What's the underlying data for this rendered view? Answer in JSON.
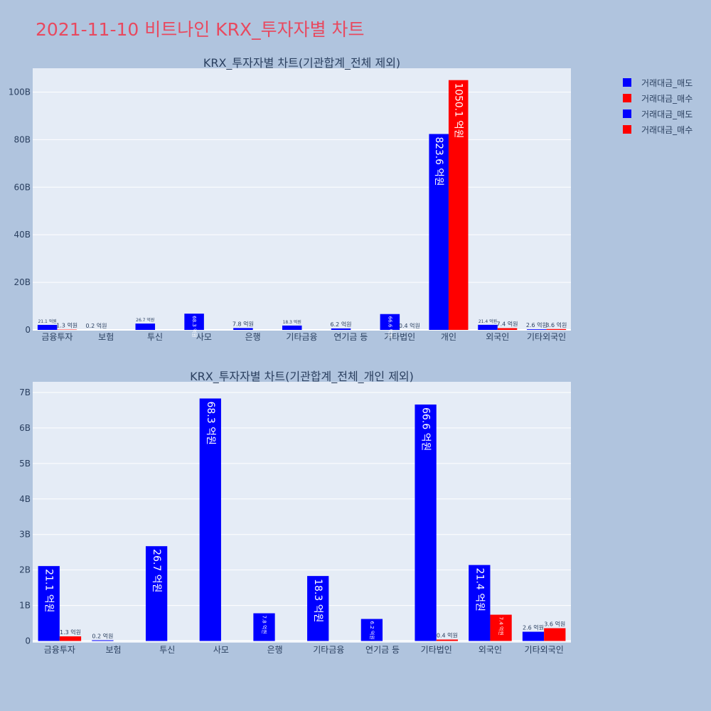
{
  "page": {
    "title": "2021-11-10 비트나인 KRX_투자자별 차트",
    "background": "#b0c4de",
    "title_color": "#e8495f",
    "plot_background": "#e5ecf6"
  },
  "legend": {
    "items": [
      {
        "label": "거래대금_매도",
        "color": "#0000ff"
      },
      {
        "label": "거래대금_매수",
        "color": "#ff0000"
      },
      {
        "label": "거래대금_매도",
        "color": "#0000ff"
      },
      {
        "label": "거래대금_매수",
        "color": "#ff0000"
      }
    ]
  },
  "chart_data": [
    {
      "type": "bar",
      "title": "KRX_투자자별 차트(기관합계_전체 제외)",
      "categories": [
        "금융투자",
        "보험",
        "투신",
        "사모",
        "은행",
        "기타금융",
        "연기금 등",
        "기타법인",
        "개인",
        "외국인",
        "기타외국인"
      ],
      "yticks": [
        0,
        20,
        40,
        60,
        80,
        100
      ],
      "ytick_labels": [
        "0",
        "20B",
        "40B",
        "60B",
        "80B",
        "100B"
      ],
      "ylim": [
        0,
        110
      ],
      "unit": "B",
      "grid": true,
      "series": [
        {
          "name": "거래대금_매도",
          "color": "#0000ff",
          "values": [
            2.11,
            0.02,
            2.67,
            6.83,
            0.78,
            1.83,
            0.62,
            6.66,
            82.36,
            2.14,
            0.26
          ],
          "labels": [
            "21.1 억원",
            "0.2 억원",
            "26.7 억원",
            "68.3 억원",
            "7.8 억원",
            "18.3 억원",
            "6.2 억원",
            "66.6 억원",
            "823.6 억원",
            "21.4 억원",
            "2.6 억원"
          ]
        },
        {
          "name": "거래대금_매수",
          "color": "#ff0000",
          "values": [
            0.13,
            0,
            0,
            0,
            0,
            0,
            0,
            0.04,
            105.01,
            0.74,
            0.36
          ],
          "labels": [
            "1.3 억원",
            "",
            "",
            "",
            "",
            "",
            "",
            "0.4 억원",
            "1050.1 억원",
            "7.4 억원",
            "3.6 억원"
          ]
        }
      ]
    },
    {
      "type": "bar",
      "title": "KRX_투자자별 차트(기관합계_전체_개인 제외)",
      "categories": [
        "금융투자",
        "보험",
        "투신",
        "사모",
        "은행",
        "기타금융",
        "연기금 등",
        "기타법인",
        "외국인",
        "기타외국인"
      ],
      "yticks": [
        0,
        1,
        2,
        3,
        4,
        5,
        6,
        7
      ],
      "ytick_labels": [
        "0",
        "1B",
        "2B",
        "3B",
        "4B",
        "5B",
        "6B",
        "7B"
      ],
      "ylim": [
        -0.05,
        7.3
      ],
      "unit": "B",
      "grid": true,
      "series": [
        {
          "name": "거래대금_매도",
          "color": "#0000ff",
          "values": [
            2.11,
            0.02,
            2.67,
            6.83,
            0.78,
            1.83,
            0.62,
            6.66,
            2.14,
            0.26
          ],
          "labels": [
            "21.1 억원",
            "0.2 억원",
            "26.7 억원",
            "68.3 억원",
            "7.8 억원",
            "18.3 억원",
            "6.2 억원",
            "66.6 억원",
            "21.4 억원",
            "2.6 억원"
          ]
        },
        {
          "name": "거래대금_매수",
          "color": "#ff0000",
          "values": [
            0.13,
            0,
            0,
            0,
            0,
            0,
            0,
            0.04,
            0.74,
            0.36
          ],
          "labels": [
            "1.3 억원",
            "",
            "",
            "",
            "",
            "",
            "",
            "0.4 억원",
            "7.4 억원",
            "3.6 억원"
          ]
        }
      ]
    }
  ]
}
